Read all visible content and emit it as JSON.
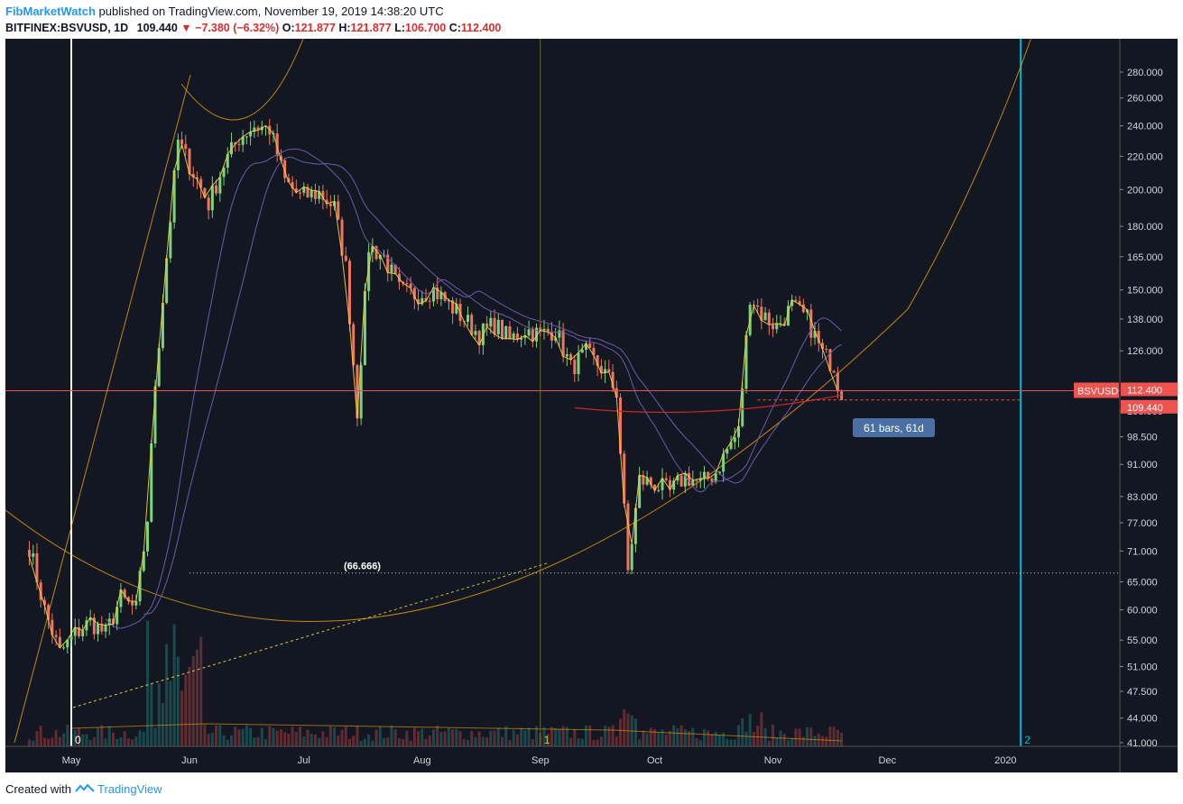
{
  "header": {
    "author": "FibMarketWatch",
    "published": " published on TradingView.com, November 19, 2019 14:38:20 UTC",
    "symbol": "BITFINEX:BSVUSD, 1D",
    "last": "109.440",
    "change": "−7.380 (−6.32%)",
    "open_label": "O:",
    "open": "121.877",
    "high_label": "H:",
    "high": "121.877",
    "low_label": "L:",
    "low": "106.700",
    "close_label": "C:",
    "close": "112.400"
  },
  "footer": {
    "created_with": "Created with",
    "brand": "TradingView"
  },
  "colors": {
    "background": "#131722",
    "up": "#26a69a",
    "down": "#ef5350",
    "fib_line": "#f0a30a",
    "ma": "#6f5aa8",
    "cyan": "#00bcd4",
    "price_tag": "#ef5350",
    "label_box": "#4a6fa5"
  },
  "chart_data": {
    "type": "candlestick",
    "symbol_tag": "BSVUSD",
    "price_tags": [
      "112.400",
      "109.440"
    ],
    "y_axis": {
      "scale": "log",
      "ticks": [
        "41.000",
        "44.000",
        "47.500",
        "51.000",
        "55.000",
        "60.000",
        "65.000",
        "71.000",
        "77.000",
        "83.000",
        "91.000",
        "98.500",
        "106.000",
        "126.000",
        "138.000",
        "150.000",
        "165.000",
        "180.000",
        "200.000",
        "220.000",
        "240.000",
        "260.000",
        "280.000"
      ]
    },
    "x_axis": {
      "labels": [
        "May",
        "Jun",
        "Jul",
        "Aug",
        "Sep",
        "Oct",
        "Nov",
        "Dec",
        "2020"
      ]
    },
    "annotations": {
      "fib_level": "(66.666)",
      "fib_level_value": 66.666,
      "bars_label": "61 bars, 61d",
      "time_zone_labels": [
        "0",
        "1",
        "2"
      ]
    },
    "price_path": [
      {
        "date": "2019-04-20",
        "close": 72
      },
      {
        "date": "2019-04-24",
        "close": 60
      },
      {
        "date": "2019-04-28",
        "close": 53
      },
      {
        "date": "2019-05-02",
        "close": 56
      },
      {
        "date": "2019-05-06",
        "close": 58
      },
      {
        "date": "2019-05-10",
        "close": 56
      },
      {
        "date": "2019-05-14",
        "close": 62
      },
      {
        "date": "2019-05-18",
        "close": 60
      },
      {
        "date": "2019-05-21",
        "close": 78
      },
      {
        "date": "2019-05-23",
        "close": 115
      },
      {
        "date": "2019-05-26",
        "close": 165
      },
      {
        "date": "2019-05-29",
        "close": 230
      },
      {
        "date": "2019-06-02",
        "close": 210
      },
      {
        "date": "2019-06-06",
        "close": 192
      },
      {
        "date": "2019-06-10",
        "close": 215
      },
      {
        "date": "2019-06-14",
        "close": 232
      },
      {
        "date": "2019-06-18",
        "close": 240
      },
      {
        "date": "2019-06-22",
        "close": 238
      },
      {
        "date": "2019-06-26",
        "close": 205
      },
      {
        "date": "2019-06-30",
        "close": 196
      },
      {
        "date": "2019-07-05",
        "close": 198
      },
      {
        "date": "2019-07-09",
        "close": 190
      },
      {
        "date": "2019-07-12",
        "close": 160
      },
      {
        "date": "2019-07-15",
        "close": 106
      },
      {
        "date": "2019-07-18",
        "close": 170
      },
      {
        "date": "2019-07-22",
        "close": 165
      },
      {
        "date": "2019-07-26",
        "close": 150
      },
      {
        "date": "2019-07-30",
        "close": 148
      },
      {
        "date": "2019-08-04",
        "close": 150
      },
      {
        "date": "2019-08-08",
        "close": 144
      },
      {
        "date": "2019-08-12",
        "close": 138
      },
      {
        "date": "2019-08-16",
        "close": 132
      },
      {
        "date": "2019-08-20",
        "close": 136
      },
      {
        "date": "2019-08-24",
        "close": 130
      },
      {
        "date": "2019-08-28",
        "close": 134
      },
      {
        "date": "2019-09-01",
        "close": 132
      },
      {
        "date": "2019-09-05",
        "close": 134
      },
      {
        "date": "2019-09-09",
        "close": 120
      },
      {
        "date": "2019-09-13",
        "close": 125
      },
      {
        "date": "2019-09-17",
        "close": 120
      },
      {
        "date": "2019-09-21",
        "close": 112
      },
      {
        "date": "2019-09-24",
        "close": 67
      },
      {
        "date": "2019-09-27",
        "close": 87
      },
      {
        "date": "2019-10-01",
        "close": 86
      },
      {
        "date": "2019-10-05",
        "close": 84
      },
      {
        "date": "2019-10-09",
        "close": 88
      },
      {
        "date": "2019-10-13",
        "close": 86
      },
      {
        "date": "2019-10-17",
        "close": 89
      },
      {
        "date": "2019-10-20",
        "close": 95
      },
      {
        "date": "2019-10-23",
        "close": 100
      },
      {
        "date": "2019-10-26",
        "close": 148
      },
      {
        "date": "2019-10-29",
        "close": 140
      },
      {
        "date": "2019-11-02",
        "close": 135
      },
      {
        "date": "2019-11-06",
        "close": 143
      },
      {
        "date": "2019-11-10",
        "close": 138
      },
      {
        "date": "2019-11-14",
        "close": 125
      },
      {
        "date": "2019-11-17",
        "close": 121
      },
      {
        "date": "2019-11-19",
        "close": 109.44
      }
    ]
  }
}
